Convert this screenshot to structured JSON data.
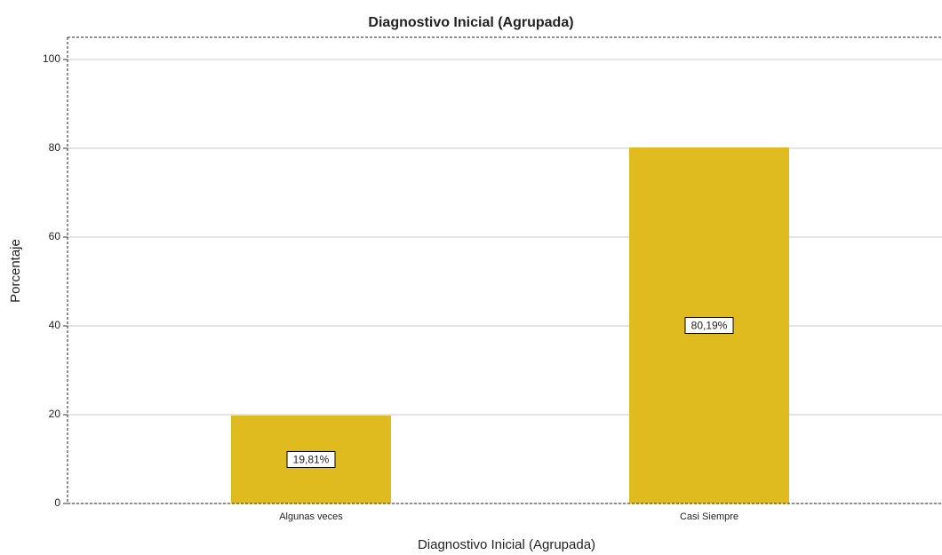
{
  "chart_data": {
    "type": "bar",
    "title": "Diagnostivo Inicial (Agrupada)",
    "x_label": "Diagnostivo Inicial (Agrupada)",
    "y_label": "Porcentaje",
    "categories": [
      "Algunas veces",
      "Casi Siempre"
    ],
    "values": [
      19.81,
      80.19
    ],
    "value_labels": [
      "19,81%",
      "80,19%"
    ],
    "color": "#e0bb1f",
    "ylim": [
      0,
      105
    ],
    "yticks": [
      0,
      20,
      40,
      60,
      80,
      100
    ],
    "grid": true
  }
}
